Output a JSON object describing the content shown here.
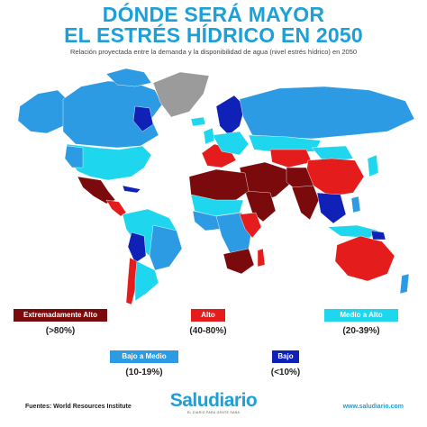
{
  "title_line1": "DÓNDE SERÁ MAYOR",
  "title_line2": "EL ESTRÉS HÍDRICO EN 2050",
  "subtitle": "Relación proyectada entre la demanda y la disponibilidad de agua (nivel estrés hídrico) en 2050",
  "colors": {
    "extremadamente_alto": "#7a0a0c",
    "alto": "#e41c1c",
    "medio_alto": "#1fd6ef",
    "bajo_medio": "#2c9be3",
    "bajo": "#1021b8",
    "greenland": "#9b9b9b",
    "ocean": "#ffffff"
  },
  "legend": [
    {
      "label": "Extremadamente Alto",
      "range": "(>80%)"
    },
    {
      "label": "Alto",
      "range": "(40-80%)"
    },
    {
      "label": "Medio a Alto",
      "range": "(20-39%)"
    },
    {
      "label": "Bajo a Medio",
      "range": "(10-19%)"
    },
    {
      "label": "Bajo",
      "range": "(<10%)"
    }
  ],
  "footer": {
    "source": "Fuentes: World Resources Institute",
    "website": "www.saludiario.com",
    "brand": "Saludiario",
    "brand_tagline": "EL DIARIO PARA GENTE SANA"
  }
}
